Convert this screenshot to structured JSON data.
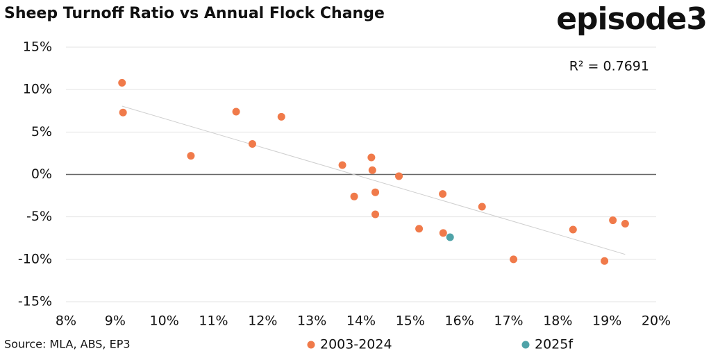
{
  "chart_data": {
    "type": "scatter",
    "title": "Sheep Turnoff Ratio vs Annual Flock Change",
    "logo": "episode3",
    "source": "Source: MLA, ABS, EP3",
    "annotation": "R² = 0.7691",
    "xlim": [
      8,
      20
    ],
    "xticks": [
      {
        "value": 8,
        "label": "8%"
      },
      {
        "value": 9,
        "label": "9%"
      },
      {
        "value": 10,
        "label": "10%"
      },
      {
        "value": 11,
        "label": "11%"
      },
      {
        "value": 12,
        "label": "12%"
      },
      {
        "value": 13,
        "label": "13%"
      },
      {
        "value": 14,
        "label": "14%"
      },
      {
        "value": 15,
        "label": "15%"
      },
      {
        "value": 16,
        "label": "16%"
      },
      {
        "value": 17,
        "label": "17%"
      },
      {
        "value": 18,
        "label": "18%"
      },
      {
        "value": 19,
        "label": "19%"
      },
      {
        "value": 20,
        "label": "20%"
      }
    ],
    "ylim": [
      -15,
      15
    ],
    "yticks": [
      {
        "value": -15,
        "label": "-15%"
      },
      {
        "value": -10,
        "label": "-10%"
      },
      {
        "value": -5,
        "label": "-5%"
      },
      {
        "value": 0,
        "label": "0%"
      },
      {
        "value": 5,
        "label": "5%"
      },
      {
        "value": 10,
        "label": "10%"
      },
      {
        "value": 15,
        "label": "15%"
      }
    ],
    "grid": true,
    "trendline": true,
    "series": [
      {
        "name": "2003-2024",
        "color": "#f07a4a",
        "x": [
          9.14,
          9.16,
          10.54,
          11.46,
          11.79,
          12.38,
          13.62,
          14.21,
          14.23,
          14.77,
          13.86,
          14.29,
          14.29,
          15.66,
          15.18,
          15.67,
          16.46,
          17.1,
          18.31,
          18.95,
          19.12,
          19.37
        ],
        "values": [
          10.8,
          7.3,
          2.2,
          7.4,
          3.6,
          6.8,
          1.1,
          2.0,
          0.5,
          -0.2,
          -2.6,
          -2.1,
          -4.7,
          -2.3,
          -6.4,
          -6.9,
          -3.8,
          -10.0,
          -6.5,
          -10.2,
          -5.4,
          -5.8
        ]
      },
      {
        "name": "2025f",
        "color": "#4fa3a8",
        "x": [
          15.81
        ],
        "values": [
          -7.4
        ]
      }
    ]
  }
}
